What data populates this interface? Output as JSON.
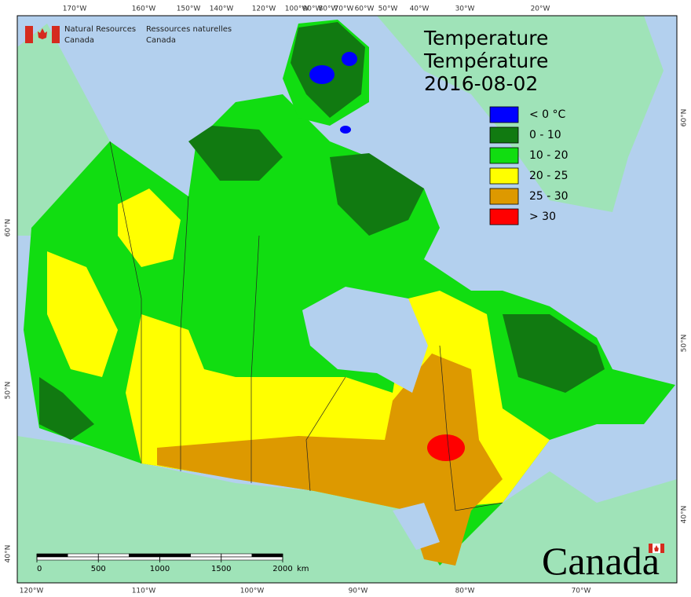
{
  "agency": {
    "en": [
      "Natural Resources",
      "Canada"
    ],
    "fr": [
      "Ressources naturelles",
      "Canada"
    ]
  },
  "title": [
    "Temperature",
    "Température"
  ],
  "date": "2016-08-02",
  "legend": [
    {
      "label": "< 0 °C",
      "color": "#0000ff"
    },
    {
      "label": "0 - 10",
      "color": "#117a11"
    },
    {
      "label": "10 - 20",
      "color": "#11dd11"
    },
    {
      "label": "20 - 25",
      "color": "#ffff00"
    },
    {
      "label": "25 - 30",
      "color": "#dd9900"
    },
    {
      "label": "> 30",
      "color": "#ff0000"
    }
  ],
  "graticule": {
    "top": [
      "170°W",
      "160°W",
      "150°W",
      "140°W",
      "120°W",
      "100°W",
      "90°W",
      "80°W",
      "70°W",
      "60°W",
      "50°W",
      "40°W",
      "30°W",
      "20°W"
    ],
    "bottom": [
      "120°W",
      "110°W",
      "100°W",
      "90°W",
      "80°W",
      "70°W"
    ],
    "left": [
      "60°N",
      "50°N",
      "40°N"
    ],
    "right": [
      "60°N",
      "50°N",
      "40°N"
    ]
  },
  "scale_bar": {
    "ticks": [
      0,
      500,
      1000,
      1500,
      2000
    ],
    "unit": "km"
  },
  "wordmark": "Canada"
}
